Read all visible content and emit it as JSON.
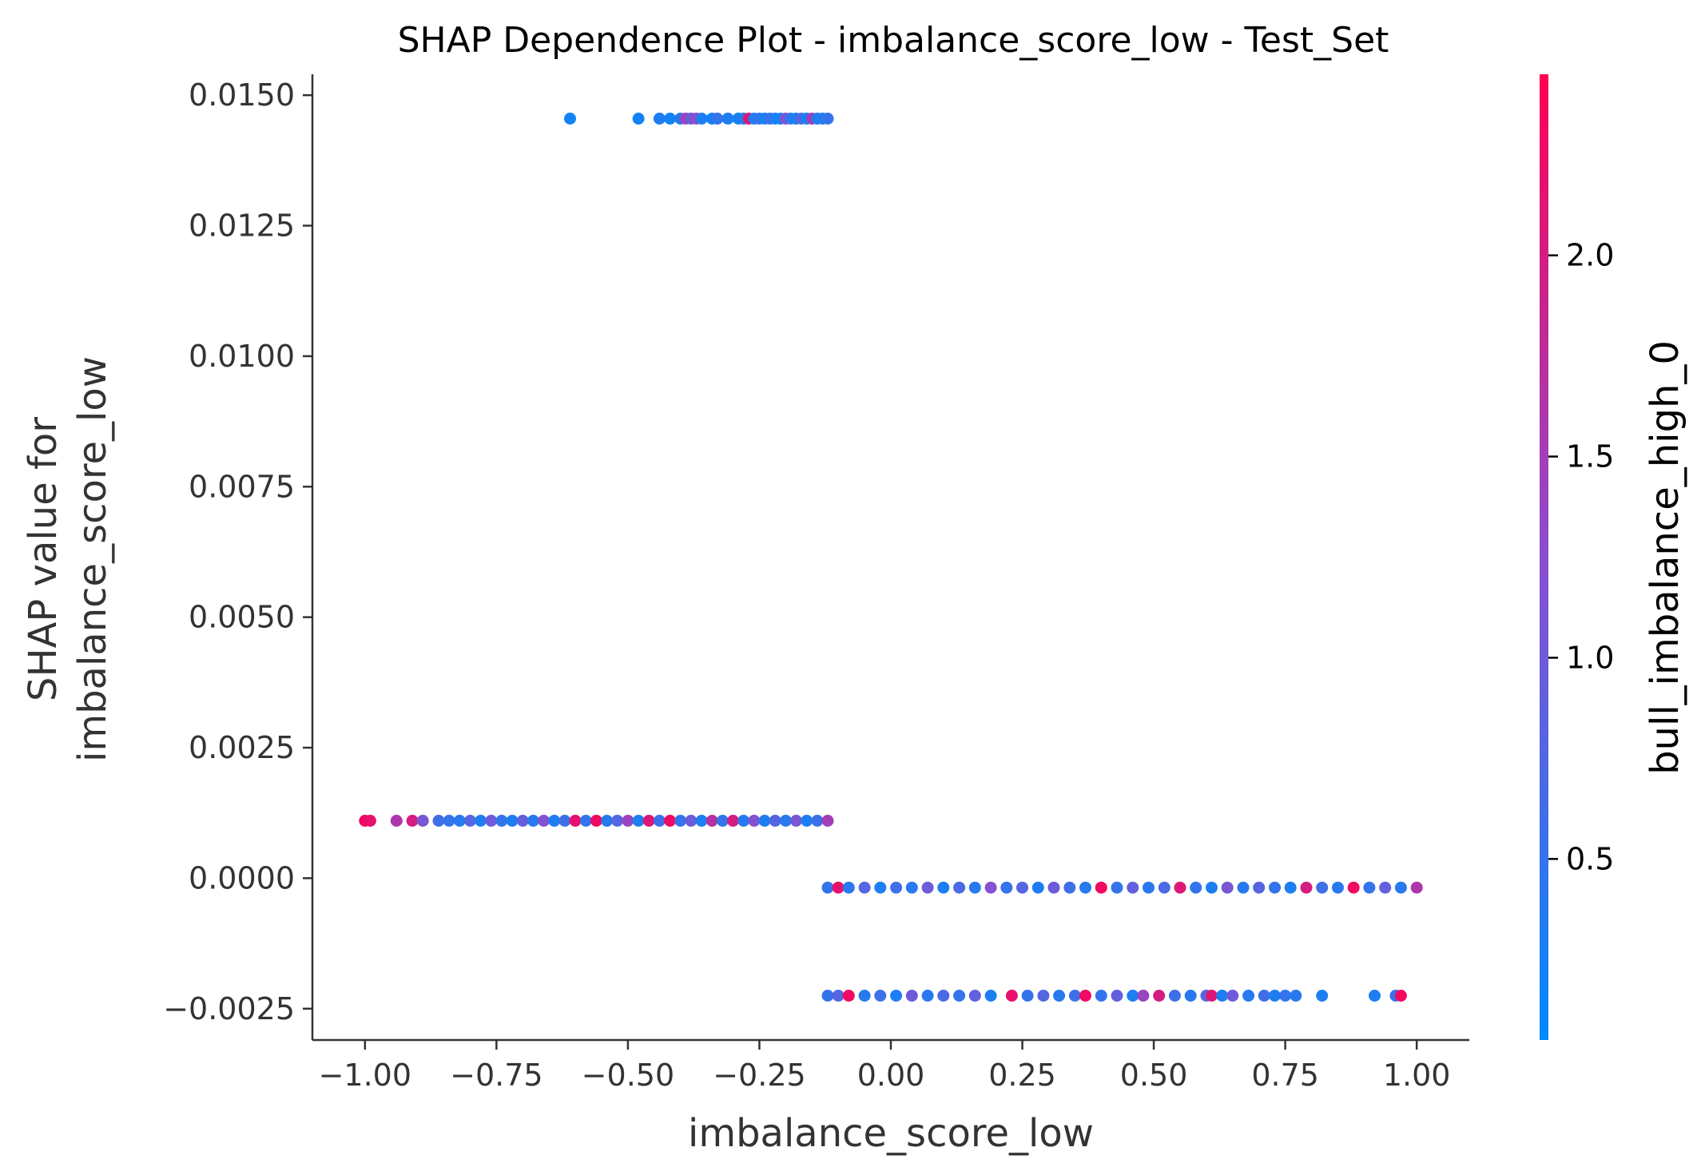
{
  "chart_data": {
    "type": "scatter",
    "title": "SHAP Dependence Plot - imbalance_score_low - Test_Set",
    "xlabel": "imbalance_score_low",
    "ylabel_lines": [
      "SHAP value for",
      "imbalance_score_low"
    ],
    "xlim": [
      -1.1,
      1.1
    ],
    "ylim": [
      -0.0031,
      0.0154
    ],
    "x_ticks": [
      -1.0,
      -0.75,
      -0.5,
      -0.25,
      0.0,
      0.25,
      0.5,
      0.75,
      1.0
    ],
    "x_tick_labels": [
      "−1.00",
      "−0.75",
      "−0.50",
      "−0.25",
      "0.00",
      "0.25",
      "0.50",
      "0.75",
      "1.00"
    ],
    "y_ticks": [
      -0.0025,
      0.0,
      0.0025,
      0.005,
      0.0075,
      0.01,
      0.0125,
      0.015
    ],
    "y_tick_labels": [
      "−0.0025",
      "0.0000",
      "0.0025",
      "0.0050",
      "0.0075",
      "0.0100",
      "0.0125",
      "0.0150"
    ],
    "colorbar": {
      "label": "bull_imbalance_high_0",
      "range": [
        0.05,
        2.45
      ],
      "ticks": [
        0.5,
        1.0,
        1.5,
        2.0
      ],
      "tick_labels": [
        "0.5",
        "1.0",
        "1.5",
        "2.0"
      ],
      "color_low": "#008afb",
      "color_high": "#ff0052"
    },
    "bands": [
      {
        "y": 0.01455,
        "points": [
          [
            -0.61,
            0.2
          ],
          [
            -0.48,
            0.2
          ],
          [
            -0.44,
            0.3
          ],
          [
            -0.42,
            0.2
          ],
          [
            -0.4,
            0.4
          ],
          [
            -0.39,
            1.4
          ],
          [
            -0.38,
            1.0
          ],
          [
            -0.37,
            1.3
          ],
          [
            -0.36,
            0.3
          ],
          [
            -0.34,
            0.2
          ],
          [
            -0.33,
            0.5
          ],
          [
            -0.31,
            0.3
          ],
          [
            -0.29,
            0.2
          ],
          [
            -0.28,
            0.4
          ],
          [
            -0.27,
            2.1
          ],
          [
            -0.26,
            0.3
          ],
          [
            -0.25,
            0.5
          ],
          [
            -0.24,
            0.2
          ],
          [
            -0.23,
            0.6
          ],
          [
            -0.22,
            0.3
          ],
          [
            -0.21,
            0.2
          ],
          [
            -0.2,
            1.2
          ],
          [
            -0.19,
            0.4
          ],
          [
            -0.18,
            0.3
          ],
          [
            -0.17,
            0.8
          ],
          [
            -0.16,
            0.2
          ],
          [
            -0.15,
            1.5
          ],
          [
            -0.14,
            0.4
          ],
          [
            -0.13,
            0.3
          ],
          [
            -0.12,
            0.5
          ]
        ]
      },
      {
        "y": 0.0011,
        "points": [
          [
            -1.0,
            2.3
          ],
          [
            -0.99,
            2.2
          ],
          [
            -0.94,
            1.6
          ],
          [
            -0.91,
            2.0
          ],
          [
            -0.89,
            1.1
          ],
          [
            -0.86,
            0.6
          ],
          [
            -0.84,
            0.5
          ],
          [
            -0.82,
            0.4
          ],
          [
            -0.8,
            0.8
          ],
          [
            -0.78,
            0.3
          ],
          [
            -0.76,
            1.0
          ],
          [
            -0.74,
            0.5
          ],
          [
            -0.72,
            0.3
          ],
          [
            -0.7,
            0.9
          ],
          [
            -0.68,
            0.4
          ],
          [
            -0.66,
            1.2
          ],
          [
            -0.64,
            0.3
          ],
          [
            -0.62,
            0.6
          ],
          [
            -0.6,
            2.2
          ],
          [
            -0.58,
            0.5
          ],
          [
            -0.56,
            2.3
          ],
          [
            -0.54,
            0.4
          ],
          [
            -0.52,
            0.8
          ],
          [
            -0.5,
            1.4
          ],
          [
            -0.48,
            0.3
          ],
          [
            -0.46,
            2.1
          ],
          [
            -0.44,
            0.6
          ],
          [
            -0.42,
            2.3
          ],
          [
            -0.4,
            0.5
          ],
          [
            -0.38,
            1.0
          ],
          [
            -0.36,
            0.3
          ],
          [
            -0.34,
            1.7
          ],
          [
            -0.32,
            0.5
          ],
          [
            -0.3,
            2.0
          ],
          [
            -0.28,
            0.4
          ],
          [
            -0.26,
            1.2
          ],
          [
            -0.24,
            0.3
          ],
          [
            -0.22,
            0.8
          ],
          [
            -0.2,
            0.4
          ],
          [
            -0.18,
            1.1
          ],
          [
            -0.16,
            0.3
          ],
          [
            -0.14,
            0.6
          ],
          [
            -0.12,
            1.5
          ]
        ]
      },
      {
        "y": -0.00018,
        "points": [
          [
            -0.12,
            0.5
          ],
          [
            -0.1,
            2.2
          ],
          [
            -0.08,
            0.4
          ],
          [
            -0.05,
            0.8
          ],
          [
            -0.02,
            0.3
          ],
          [
            0.01,
            0.6
          ],
          [
            0.04,
            0.4
          ],
          [
            0.07,
            1.0
          ],
          [
            0.1,
            0.3
          ],
          [
            0.13,
            0.7
          ],
          [
            0.16,
            0.4
          ],
          [
            0.19,
            1.2
          ],
          [
            0.22,
            0.5
          ],
          [
            0.25,
            0.8
          ],
          [
            0.28,
            0.3
          ],
          [
            0.31,
            1.0
          ],
          [
            0.34,
            0.6
          ],
          [
            0.37,
            0.4
          ],
          [
            0.4,
            2.3
          ],
          [
            0.43,
            0.5
          ],
          [
            0.46,
            0.9
          ],
          [
            0.49,
            0.4
          ],
          [
            0.52,
            0.7
          ],
          [
            0.55,
            2.1
          ],
          [
            0.58,
            0.5
          ],
          [
            0.61,
            0.3
          ],
          [
            0.64,
            1.1
          ],
          [
            0.67,
            0.4
          ],
          [
            0.7,
            0.8
          ],
          [
            0.73,
            0.5
          ],
          [
            0.76,
            0.3
          ],
          [
            0.79,
            2.0
          ],
          [
            0.82,
            0.6
          ],
          [
            0.85,
            0.4
          ],
          [
            0.88,
            2.3
          ],
          [
            0.91,
            0.5
          ],
          [
            0.94,
            0.9
          ],
          [
            0.97,
            0.4
          ],
          [
            1.0,
            1.6
          ]
        ]
      },
      {
        "y": -0.00225,
        "points": [
          [
            -0.12,
            0.5
          ],
          [
            -0.1,
            0.8
          ],
          [
            -0.08,
            2.3
          ],
          [
            -0.05,
            0.4
          ],
          [
            -0.02,
            0.6
          ],
          [
            0.01,
            0.3
          ],
          [
            0.04,
            1.0
          ],
          [
            0.07,
            0.4
          ],
          [
            0.1,
            0.7
          ],
          [
            0.13,
            0.5
          ],
          [
            0.16,
            0.9
          ],
          [
            0.19,
            0.3
          ],
          [
            0.23,
            2.2
          ],
          [
            0.26,
            0.5
          ],
          [
            0.29,
            0.8
          ],
          [
            0.32,
            0.4
          ],
          [
            0.35,
            0.6
          ],
          [
            0.37,
            2.3
          ],
          [
            0.4,
            0.5
          ],
          [
            0.43,
            0.9
          ],
          [
            0.46,
            0.3
          ],
          [
            0.48,
            1.4
          ],
          [
            0.51,
            2.0
          ],
          [
            0.54,
            0.6
          ],
          [
            0.57,
            0.4
          ],
          [
            0.6,
            0.8
          ],
          [
            0.61,
            2.1
          ],
          [
            0.63,
            0.3
          ],
          [
            0.65,
            1.0
          ],
          [
            0.68,
            0.4
          ],
          [
            0.71,
            0.6
          ],
          [
            0.73,
            0.3
          ],
          [
            0.75,
            0.5
          ],
          [
            0.77,
            0.4
          ],
          [
            0.82,
            0.3
          ],
          [
            0.92,
            0.3
          ],
          [
            0.96,
            0.5
          ],
          [
            0.97,
            2.3
          ]
        ]
      }
    ]
  }
}
